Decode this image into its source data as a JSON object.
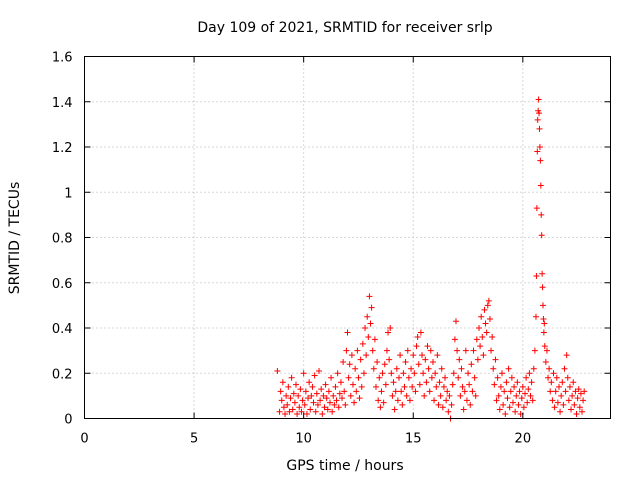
{
  "chart_data": {
    "type": "scatter",
    "title": "Day 109 of 2021, SRMTID for receiver srlp",
    "xlabel": "GPS time / hours",
    "ylabel": "SRMTID / TECUs",
    "xlim": [
      0,
      24
    ],
    "ylim": [
      0,
      1.6
    ],
    "x_ticks": [
      0,
      5,
      10,
      15,
      20
    ],
    "x_tick_labels": [
      "0",
      "5",
      "10",
      "15",
      "20"
    ],
    "y_ticks": [
      0,
      0.2,
      0.4,
      0.6,
      0.8,
      1.0,
      1.2,
      1.4,
      1.6
    ],
    "y_tick_labels": [
      "0",
      "0.2",
      "0.4",
      "0.6",
      "0.8",
      "1",
      "1.2",
      "1.4",
      "1.6"
    ],
    "grid": true,
    "marker": "+",
    "series": [
      {
        "name": "srlp",
        "color": "#ff0000",
        "points": [
          [
            8.8,
            0.21
          ],
          [
            8.9,
            0.03
          ],
          [
            8.95,
            0.12
          ],
          [
            9.0,
            0.08
          ],
          [
            9.05,
            0.16
          ],
          [
            9.1,
            0.05
          ],
          [
            9.15,
            0.02
          ],
          [
            9.2,
            0.1
          ],
          [
            9.25,
            0.06
          ],
          [
            9.3,
            0.14
          ],
          [
            9.35,
            0.03
          ],
          [
            9.4,
            0.09
          ],
          [
            9.45,
            0.18
          ],
          [
            9.5,
            0.04
          ],
          [
            9.55,
            0.11
          ],
          [
            9.6,
            0.07
          ],
          [
            9.65,
            0.15
          ],
          [
            9.7,
            0.02
          ],
          [
            9.75,
            0.1
          ],
          [
            9.8,
            0.05
          ],
          [
            9.85,
            0.13
          ],
          [
            9.9,
            0.03
          ],
          [
            9.95,
            0.08
          ],
          [
            10.0,
            0.2
          ],
          [
            10.05,
            0.06
          ],
          [
            10.1,
            0.12
          ],
          [
            10.15,
            0.02
          ],
          [
            10.2,
            0.09
          ],
          [
            10.25,
            0.16
          ],
          [
            10.3,
            0.04
          ],
          [
            10.35,
            0.1
          ],
          [
            10.4,
            0.14
          ],
          [
            10.45,
            0.07
          ],
          [
            10.5,
            0.19
          ],
          [
            10.55,
            0.03
          ],
          [
            10.6,
            0.11
          ],
          [
            10.65,
            0.06
          ],
          [
            10.7,
            0.21
          ],
          [
            10.75,
            0.08
          ],
          [
            10.8,
            0.13
          ],
          [
            10.85,
            0.02
          ],
          [
            10.9,
            0.1
          ],
          [
            10.95,
            0.05
          ],
          [
            11.0,
            0.15
          ],
          [
            11.05,
            0.09
          ],
          [
            11.1,
            0.04
          ],
          [
            11.15,
            0.12
          ],
          [
            11.2,
            0.07
          ],
          [
            11.25,
            0.18
          ],
          [
            11.3,
            0.03
          ],
          [
            11.35,
            0.1
          ],
          [
            11.4,
            0.06
          ],
          [
            11.45,
            0.14
          ],
          [
            11.5,
            0.08
          ],
          [
            11.55,
            0.2
          ],
          [
            11.6,
            0.05
          ],
          [
            11.65,
            0.11
          ],
          [
            11.7,
            0.16
          ],
          [
            11.75,
            0.09
          ],
          [
            11.8,
            0.25
          ],
          [
            11.85,
            0.12
          ],
          [
            11.9,
            0.06
          ],
          [
            11.95,
            0.3
          ],
          [
            12.0,
            0.38
          ],
          [
            12.05,
            0.18
          ],
          [
            12.1,
            0.24
          ],
          [
            12.15,
            0.1
          ],
          [
            12.2,
            0.28
          ],
          [
            12.25,
            0.15
          ],
          [
            12.3,
            0.07
          ],
          [
            12.35,
            0.22
          ],
          [
            12.4,
            0.12
          ],
          [
            12.45,
            0.3
          ],
          [
            12.5,
            0.18
          ],
          [
            12.55,
            0.09
          ],
          [
            12.6,
            0.26
          ],
          [
            12.65,
            0.14
          ],
          [
            12.7,
            0.33
          ],
          [
            12.75,
            0.2
          ],
          [
            12.8,
            0.4
          ],
          [
            12.85,
            0.28
          ],
          [
            12.9,
            0.45
          ],
          [
            12.95,
            0.36
          ],
          [
            13.0,
            0.54
          ],
          [
            13.05,
            0.42
          ],
          [
            13.1,
            0.49
          ],
          [
            13.15,
            0.3
          ],
          [
            13.2,
            0.22
          ],
          [
            13.25,
            0.35
          ],
          [
            13.3,
            0.14
          ],
          [
            13.35,
            0.25
          ],
          [
            13.4,
            0.08
          ],
          [
            13.45,
            0.18
          ],
          [
            13.5,
            0.05
          ],
          [
            13.55,
            0.12
          ],
          [
            13.6,
            0.2
          ],
          [
            13.65,
            0.07
          ],
          [
            13.7,
            0.24
          ],
          [
            13.75,
            0.15
          ],
          [
            13.8,
            0.3
          ],
          [
            13.85,
            0.38
          ],
          [
            13.9,
            0.26
          ],
          [
            13.95,
            0.4
          ],
          [
            14.0,
            0.2
          ],
          [
            14.05,
            0.1
          ],
          [
            14.1,
            0.16
          ],
          [
            14.15,
            0.04
          ],
          [
            14.2,
            0.12
          ],
          [
            14.25,
            0.22
          ],
          [
            14.3,
            0.08
          ],
          [
            14.35,
            0.18
          ],
          [
            14.4,
            0.28
          ],
          [
            14.45,
            0.12
          ],
          [
            14.5,
            0.06
          ],
          [
            14.55,
            0.2
          ],
          [
            14.6,
            0.14
          ],
          [
            14.65,
            0.25
          ],
          [
            14.7,
            0.1
          ],
          [
            14.75,
            0.3
          ],
          [
            14.8,
            0.18
          ],
          [
            14.85,
            0.08
          ],
          [
            14.9,
            0.22
          ],
          [
            14.95,
            0.14
          ],
          [
            15.0,
            0.28
          ],
          [
            15.05,
            0.2
          ],
          [
            15.1,
            0.12
          ],
          [
            15.15,
            0.32
          ],
          [
            15.2,
            0.36
          ],
          [
            15.25,
            0.24
          ],
          [
            15.3,
            0.15
          ],
          [
            15.35,
            0.38
          ],
          [
            15.4,
            0.28
          ],
          [
            15.45,
            0.2
          ],
          [
            15.5,
            0.1
          ],
          [
            15.55,
            0.26
          ],
          [
            15.6,
            0.16
          ],
          [
            15.65,
            0.32
          ],
          [
            15.7,
            0.22
          ],
          [
            15.75,
            0.12
          ],
          [
            15.8,
            0.3
          ],
          [
            15.85,
            0.18
          ],
          [
            15.9,
            0.25
          ],
          [
            15.95,
            0.08
          ],
          [
            16.0,
            0.2
          ],
          [
            16.05,
            0.14
          ],
          [
            16.1,
            0.28
          ],
          [
            16.15,
            0.06
          ],
          [
            16.2,
            0.16
          ],
          [
            16.25,
            0.1
          ],
          [
            16.3,
            0.22
          ],
          [
            16.35,
            0.05
          ],
          [
            16.4,
            0.14
          ],
          [
            16.45,
            0.18
          ],
          [
            16.5,
            0.08
          ],
          [
            16.55,
            0.12
          ],
          [
            16.6,
            0.03
          ],
          [
            16.65,
            0.1
          ],
          [
            16.7,
            0.0
          ],
          [
            16.75,
            0.06
          ],
          [
            16.8,
            0.15
          ],
          [
            16.85,
            0.2
          ],
          [
            16.9,
            0.35
          ],
          [
            16.95,
            0.43
          ],
          [
            17.0,
            0.3
          ],
          [
            17.05,
            0.18
          ],
          [
            17.1,
            0.26
          ],
          [
            17.15,
            0.1
          ],
          [
            17.2,
            0.22
          ],
          [
            17.25,
            0.14
          ],
          [
            17.3,
            0.04
          ],
          [
            17.35,
            0.12
          ],
          [
            17.4,
            0.3
          ],
          [
            17.45,
            0.08
          ],
          [
            17.5,
            0.2
          ],
          [
            17.55,
            0.15
          ],
          [
            17.6,
            0.06
          ],
          [
            17.65,
            0.24
          ],
          [
            17.7,
            0.12
          ],
          [
            17.75,
            0.3
          ],
          [
            17.8,
            0.18
          ],
          [
            17.85,
            0.1
          ],
          [
            17.9,
            0.35
          ],
          [
            17.95,
            0.26
          ],
          [
            18.0,
            0.4
          ],
          [
            18.05,
            0.32
          ],
          [
            18.1,
            0.45
          ],
          [
            18.15,
            0.36
          ],
          [
            18.2,
            0.28
          ],
          [
            18.25,
            0.48
          ],
          [
            18.3,
            0.42
          ],
          [
            18.35,
            0.38
          ],
          [
            18.4,
            0.5
          ],
          [
            18.45,
            0.52
          ],
          [
            18.5,
            0.44
          ],
          [
            18.55,
            0.3
          ],
          [
            18.6,
            0.36
          ],
          [
            18.65,
            0.22
          ],
          [
            18.7,
            0.15
          ],
          [
            18.75,
            0.26
          ],
          [
            18.8,
            0.08
          ],
          [
            18.85,
            0.18
          ],
          [
            18.9,
            0.1
          ],
          [
            18.95,
            0.04
          ],
          [
            19.0,
            0.14
          ],
          [
            19.05,
            0.2
          ],
          [
            19.1,
            0.06
          ],
          [
            19.15,
            0.12
          ],
          [
            19.2,
            0.02
          ],
          [
            19.25,
            0.16
          ],
          [
            19.3,
            0.09
          ],
          [
            19.35,
            0.22
          ],
          [
            19.4,
            0.05
          ],
          [
            19.45,
            0.12
          ],
          [
            19.5,
            0.18
          ],
          [
            19.55,
            0.07
          ],
          [
            19.6,
            0.14
          ],
          [
            19.65,
            0.03
          ],
          [
            19.7,
            0.1
          ],
          [
            19.75,
            0.16
          ],
          [
            19.8,
            0.06
          ],
          [
            19.85,
            0.12
          ],
          [
            19.9,
            0.02
          ],
          [
            19.95,
            0.09
          ],
          [
            20.0,
            0.14
          ],
          [
            20.05,
            0.05
          ],
          [
            20.1,
            0.11
          ],
          [
            20.15,
            0.18
          ],
          [
            20.2,
            0.07
          ],
          [
            20.25,
            0.13
          ],
          [
            20.3,
            0.2
          ],
          [
            20.35,
            0.1
          ],
          [
            20.4,
            0.16
          ],
          [
            20.45,
            0.08
          ],
          [
            20.5,
            0.22
          ],
          [
            20.55,
            0.3
          ],
          [
            20.6,
            0.45
          ],
          [
            20.62,
            0.63
          ],
          [
            20.64,
            0.93
          ],
          [
            20.66,
            1.18
          ],
          [
            20.68,
            1.32
          ],
          [
            20.7,
            1.36
          ],
          [
            20.72,
            1.41
          ],
          [
            20.74,
            1.35
          ],
          [
            20.76,
            1.28
          ],
          [
            20.78,
            1.2
          ],
          [
            20.8,
            1.14
          ],
          [
            20.82,
            1.03
          ],
          [
            20.84,
            0.9
          ],
          [
            20.86,
            0.81
          ],
          [
            20.88,
            0.64
          ],
          [
            20.9,
            0.58
          ],
          [
            20.92,
            0.5
          ],
          [
            20.94,
            0.44
          ],
          [
            20.96,
            0.38
          ],
          [
            20.98,
            0.42
          ],
          [
            21.0,
            0.32
          ],
          [
            21.05,
            0.25
          ],
          [
            21.1,
            0.3
          ],
          [
            21.15,
            0.18
          ],
          [
            21.2,
            0.22
          ],
          [
            21.25,
            0.12
          ],
          [
            21.3,
            0.16
          ],
          [
            21.35,
            0.08
          ],
          [
            21.4,
            0.2
          ],
          [
            21.45,
            0.05
          ],
          [
            21.5,
            0.12
          ],
          [
            21.55,
            0.18
          ],
          [
            21.6,
            0.07
          ],
          [
            21.65,
            0.14
          ],
          [
            21.7,
            0.03
          ],
          [
            21.75,
            0.1
          ],
          [
            21.8,
            0.16
          ],
          [
            21.85,
            0.06
          ],
          [
            21.9,
            0.22
          ],
          [
            21.95,
            0.12
          ],
          [
            22.0,
            0.28
          ],
          [
            22.05,
            0.18
          ],
          [
            22.1,
            0.08
          ],
          [
            22.15,
            0.14
          ],
          [
            22.2,
            0.04
          ],
          [
            22.25,
            0.1
          ],
          [
            22.3,
            0.16
          ],
          [
            22.35,
            0.06
          ],
          [
            22.4,
            0.12
          ],
          [
            22.45,
            0.02
          ],
          [
            22.5,
            0.09
          ],
          [
            22.55,
            0.13
          ],
          [
            22.6,
            0.05
          ],
          [
            22.65,
            0.11
          ],
          [
            22.7,
            0.03
          ],
          [
            22.75,
            0.08
          ],
          [
            22.8,
            0.12
          ]
        ]
      }
    ]
  }
}
